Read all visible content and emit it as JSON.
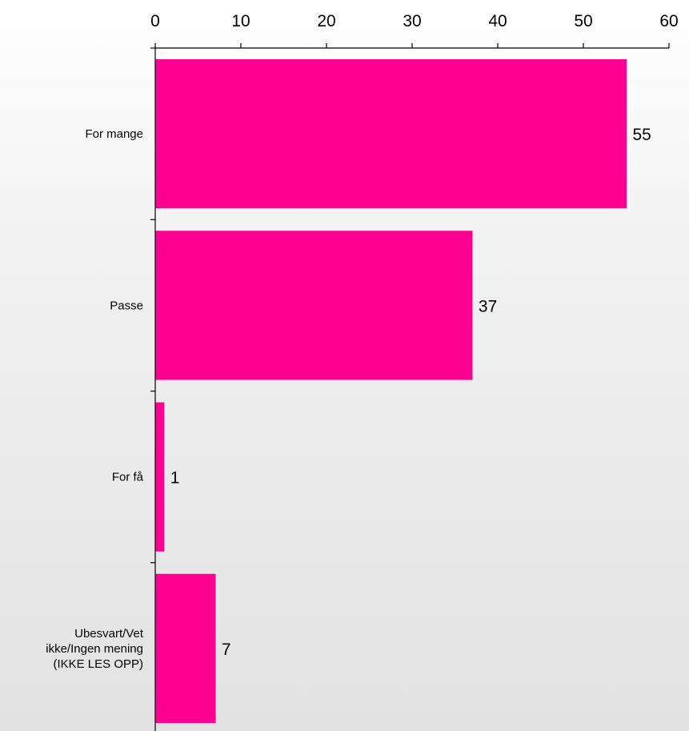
{
  "chart_data": {
    "type": "bar",
    "orientation": "horizontal",
    "categories": [
      [
        "For mange"
      ],
      [
        "Passe"
      ],
      [
        "For få"
      ],
      [
        "Ubesvart/Vet",
        "ikke/Ingen mening",
        "(IKKE LES OPP)"
      ]
    ],
    "values": [
      55,
      37,
      1,
      7
    ],
    "value_labels": [
      "55",
      "37",
      "1",
      "7"
    ],
    "xlim": [
      0,
      60
    ],
    "x_ticks": [
      0,
      10,
      20,
      30,
      40,
      50,
      60
    ],
    "x_tick_labels": [
      "0",
      "10",
      "20",
      "30",
      "40",
      "50",
      "60"
    ],
    "x_axis_position": "top",
    "grid": false,
    "bar_color": "#ff0090"
  }
}
